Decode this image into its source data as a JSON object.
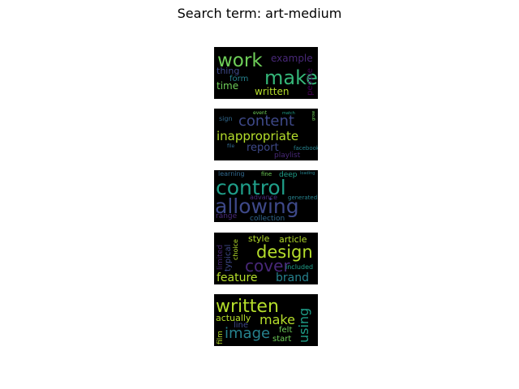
{
  "title": "Search term: art-medium",
  "colors": {
    "background": "#ffffff",
    "cloud_background": "#000000",
    "palette": [
      "#440154",
      "#482878",
      "#3e4989",
      "#31688e",
      "#26828e",
      "#1f9e89",
      "#35b779",
      "#6ece58",
      "#b5de2b",
      "#fde725"
    ]
  },
  "clouds": [
    {
      "words": [
        "work",
        "make",
        "example",
        "thing",
        "form",
        "time",
        "people",
        "written"
      ]
    },
    {
      "words": [
        "event",
        "match",
        "grow",
        "sign",
        "content",
        "inappropriate",
        "file",
        "report",
        "facebook",
        "playlist"
      ]
    },
    {
      "words": [
        "learning",
        "fine",
        "deep",
        "loading",
        "control",
        "allowing",
        "advance",
        "generated",
        "range",
        "collection"
      ]
    },
    {
      "words": [
        "style",
        "article",
        "limited",
        "typical",
        "choice",
        "design",
        "cover",
        "included",
        "feature",
        "brand"
      ]
    },
    {
      "words": [
        "written",
        "using",
        "actually",
        "make",
        "line",
        "film",
        "image",
        "felt",
        "start"
      ]
    }
  ]
}
